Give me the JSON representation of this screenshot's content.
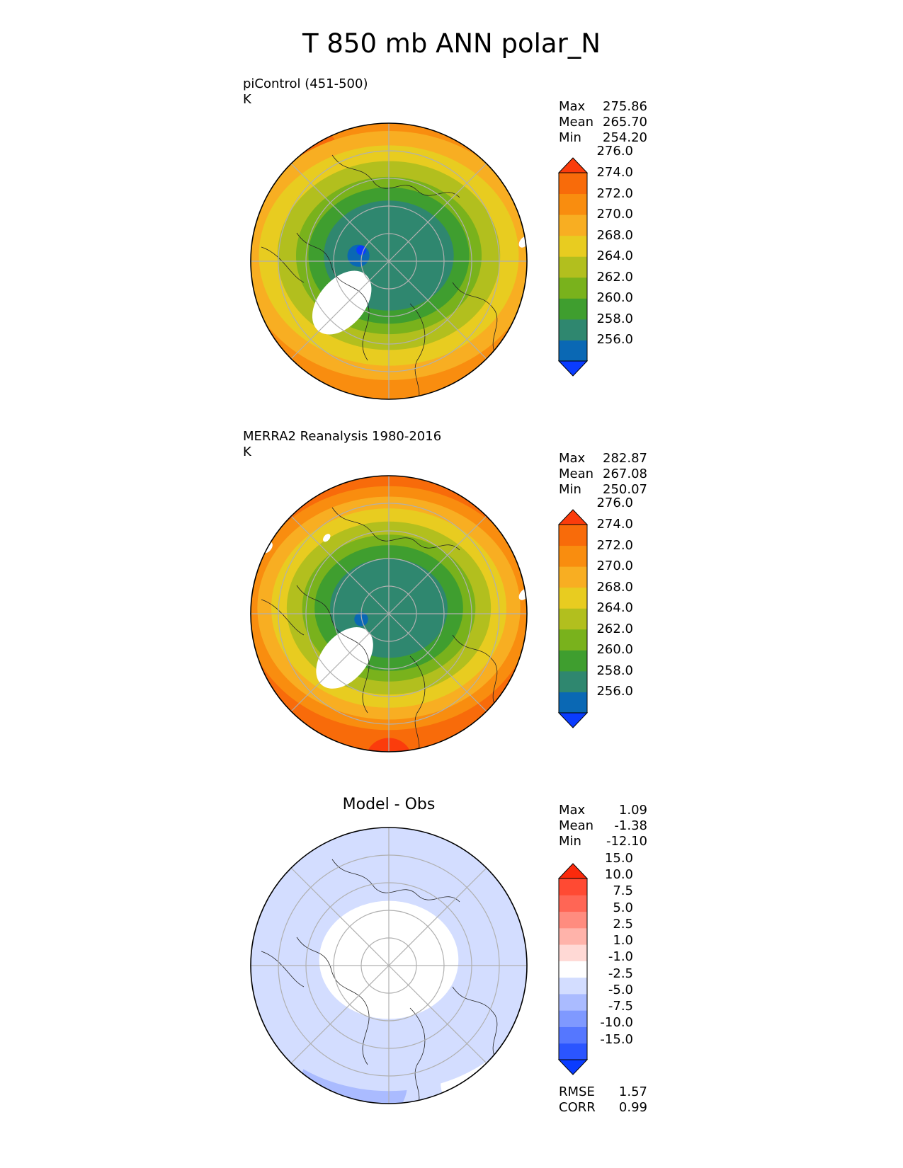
{
  "figure_title": "T 850 mb ANN polar_N",
  "chart_data": [
    {
      "type": "heatmap",
      "projection": "north-polar-stereographic",
      "title": "piControl (451-500)",
      "units": "K",
      "stats": {
        "Max": "275.86",
        "Mean": "265.70",
        "Min": "254.20"
      },
      "colorbar": {
        "levels": [
          256,
          258,
          260,
          262,
          264,
          268,
          270,
          272,
          274,
          276
        ],
        "tick_labels": [
          "256.0",
          "258.0",
          "260.0",
          "262.0",
          "264.0",
          "268.0",
          "270.0",
          "272.0",
          "274.0",
          "276.0"
        ],
        "colors": [
          "#0a3cff",
          "#0a68b4",
          "#2f876f",
          "#3f9e2f",
          "#79b21c",
          "#b2bf1e",
          "#e8cc20",
          "#f8ae22",
          "#f98d0f",
          "#f86b0a",
          "#fb3c0c"
        ],
        "extend": "both"
      },
      "field_rings": [
        {
          "color_index": 2,
          "r": 0.42
        },
        {
          "color_index": 3,
          "r": 0.52
        },
        {
          "color_index": 4,
          "r": 0.6
        },
        {
          "color_index": 5,
          "r": 0.72
        },
        {
          "color_index": 6,
          "r": 0.84
        },
        {
          "color_index": 7,
          "r": 0.95
        }
      ],
      "outer_color_index": 8,
      "extremes": [
        {
          "color_index": 9,
          "cx": -0.72,
          "cy": -0.7,
          "r": 0.35
        },
        {
          "color_index": 10,
          "cx": -0.98,
          "cy": -0.55,
          "r": 0.2
        }
      ],
      "lows": [
        {
          "color_index": 1,
          "cx": -0.22,
          "cy": -0.04,
          "r": 0.08
        },
        {
          "color_index": 0,
          "cx": -0.2,
          "cy": -0.08,
          "r": 0.035
        }
      ],
      "missing": [
        {
          "cx": -0.34,
          "cy": 0.3,
          "r": 0.28
        },
        {
          "cx": -0.86,
          "cy": -0.58,
          "r": 0.05
        },
        {
          "cx": 0.98,
          "cy": -0.14,
          "r": 0.05
        }
      ]
    },
    {
      "type": "heatmap",
      "projection": "north-polar-stereographic",
      "title": "MERRA2 Reanalysis 1980-2016",
      "units": "K",
      "stats": {
        "Max": "282.87",
        "Mean": "267.08",
        "Min": "250.07"
      },
      "colorbar": {
        "levels": [
          256,
          258,
          260,
          262,
          264,
          268,
          270,
          272,
          274,
          276
        ],
        "tick_labels": [
          "256.0",
          "258.0",
          "260.0",
          "262.0",
          "264.0",
          "268.0",
          "270.0",
          "272.0",
          "274.0",
          "276.0"
        ],
        "colors": [
          "#0a3cff",
          "#0a68b4",
          "#2f876f",
          "#3f9e2f",
          "#79b21c",
          "#b2bf1e",
          "#e8cc20",
          "#f8ae22",
          "#f98d0f",
          "#f86b0a",
          "#fb3c0c"
        ],
        "extend": "both"
      },
      "field_rings": [
        {
          "color_index": 2,
          "r": 0.38
        },
        {
          "color_index": 3,
          "r": 0.48
        },
        {
          "color_index": 4,
          "r": 0.56
        },
        {
          "color_index": 5,
          "r": 0.66
        },
        {
          "color_index": 6,
          "r": 0.76
        },
        {
          "color_index": 7,
          "r": 0.85
        },
        {
          "color_index": 8,
          "r": 0.93
        }
      ],
      "outer_color_index": 9,
      "extremes": [
        {
          "color_index": 10,
          "cx": -0.95,
          "cy": -0.4,
          "r": 0.25
        },
        {
          "color_index": 10,
          "cx": 0.0,
          "cy": 1.05,
          "r": 0.15
        }
      ],
      "lows": [
        {
          "color_index": 1,
          "cx": -0.2,
          "cy": 0.04,
          "r": 0.05
        }
      ],
      "missing": [
        {
          "cx": -0.32,
          "cy": 0.32,
          "r": 0.27
        },
        {
          "cx": -0.88,
          "cy": -0.48,
          "r": 0.05
        },
        {
          "cx": -0.45,
          "cy": -0.55,
          "r": 0.035
        },
        {
          "cx": 0.98,
          "cy": -0.14,
          "r": 0.05
        }
      ]
    },
    {
      "type": "heatmap",
      "projection": "north-polar-stereographic",
      "title": "Model - Obs",
      "stats": {
        "Max": "1.09",
        "Mean": "-1.38",
        "Min": "-12.10"
      },
      "metrics": {
        "RMSE": "1.57",
        "CORR": "0.99"
      },
      "colorbar": {
        "levels": [
          -15,
          -10,
          -7.5,
          -5,
          -2.5,
          -1,
          1,
          2.5,
          5,
          7.5,
          10,
          15
        ],
        "tick_labels": [
          "-15.0",
          "-10.0",
          "-7.5",
          "-5.0",
          "-2.5",
          "-1.0",
          "1.0",
          "2.5",
          "5.0",
          "7.5",
          "10.0",
          "15.0"
        ],
        "colors": [
          "#0a3cff",
          "#2b55ff",
          "#5577ff",
          "#7f99ff",
          "#aabbff",
          "#d3ddff",
          "#ffffff",
          "#ffd9d5",
          "#ffb3aa",
          "#ff8c7f",
          "#ff6655",
          "#ff4a33",
          "#fb2a0c"
        ],
        "extend": "both"
      },
      "field_rings": [
        {
          "color_index": 6,
          "r": 0.45
        },
        {
          "color_index": 5,
          "r": 1.0
        }
      ],
      "outer_color_index": 5,
      "extremes": [
        {
          "color_index": 4,
          "cx": -0.25,
          "cy": 0.85,
          "r": 0.35
        },
        {
          "color_index": 4,
          "cx": 0.82,
          "cy": -0.55,
          "r": 0.12
        },
        {
          "color_index": 6,
          "cx": -0.85,
          "cy": -0.45,
          "r": 0.28
        },
        {
          "color_index": 6,
          "cx": -0.65,
          "cy": 0.1,
          "r": 0.22
        },
        {
          "color_index": 6,
          "cx": 0.65,
          "cy": 0.85,
          "r": 0.25
        }
      ],
      "lows": [],
      "missing": []
    }
  ]
}
